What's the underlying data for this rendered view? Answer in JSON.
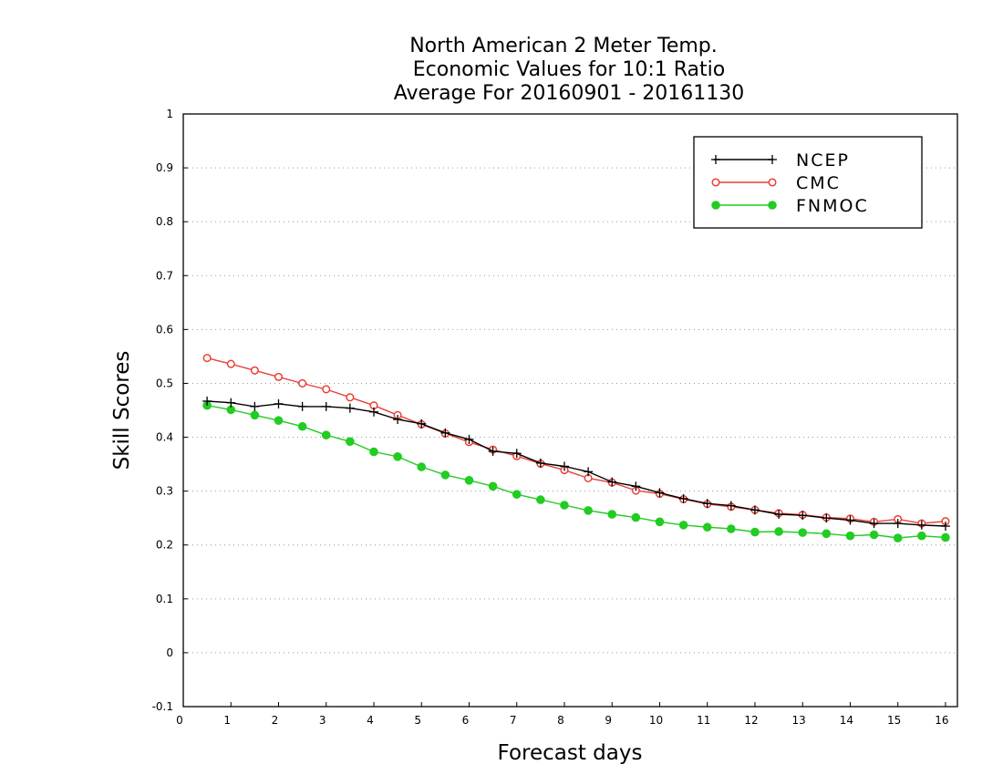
{
  "chart_data": {
    "type": "line",
    "title": [
      "North American 2 Meter Temp.",
      "Economic Values for 10:1 Ratio",
      "Average For 20160901 - 20161130"
    ],
    "xlabel": "Forecast days",
    "ylabel": "Skill Scores",
    "xlim": [
      0,
      16.25
    ],
    "ylim": [
      -0.1,
      1
    ],
    "xticks": [
      0,
      1,
      2,
      3,
      4,
      5,
      6,
      7,
      8,
      9,
      10,
      11,
      12,
      13,
      14,
      15,
      16
    ],
    "xtick_labels": [
      "0",
      "1",
      "2",
      "3",
      "4",
      "5",
      "6",
      "7",
      "8",
      "9",
      "10",
      "11",
      "12",
      "13",
      "14",
      "15",
      "16"
    ],
    "yticks": [
      -0.1,
      0,
      0.1,
      0.2,
      0.3,
      0.4,
      0.5,
      0.6,
      0.7,
      0.8,
      0.9,
      1
    ],
    "ytick_labels": [
      "-0.1",
      "0",
      "0.1",
      "0.2",
      "0.3",
      "0.4",
      "0.5",
      "0.6",
      "0.7",
      "0.8",
      "0.9",
      "1"
    ],
    "grid": true,
    "legend_position": "top-right",
    "x": [
      0.5,
      1,
      1.5,
      2,
      2.5,
      3,
      3.5,
      4,
      4.5,
      5,
      5.5,
      6,
      6.5,
      7,
      7.5,
      8,
      8.5,
      9,
      9.5,
      10,
      10.5,
      11,
      11.5,
      12,
      12.5,
      13,
      13.5,
      14,
      14.5,
      15,
      15.5,
      16
    ],
    "series": [
      {
        "name": "NCEP",
        "color": "#000000",
        "marker": "plus",
        "values": [
          0.467,
          0.464,
          0.457,
          0.462,
          0.457,
          0.457,
          0.454,
          0.447,
          0.433,
          0.425,
          0.408,
          0.396,
          0.374,
          0.37,
          0.352,
          0.346,
          0.336,
          0.317,
          0.309,
          0.297,
          0.286,
          0.277,
          0.273,
          0.265,
          0.257,
          0.255,
          0.25,
          0.246,
          0.24,
          0.24,
          0.237,
          0.235
        ]
      },
      {
        "name": "CMC",
        "color": "#e8403a",
        "marker": "open-circle",
        "values": [
          0.547,
          0.536,
          0.524,
          0.512,
          0.5,
          0.489,
          0.474,
          0.459,
          0.441,
          0.424,
          0.407,
          0.391,
          0.377,
          0.365,
          0.351,
          0.339,
          0.324,
          0.316,
          0.301,
          0.295,
          0.285,
          0.276,
          0.271,
          0.265,
          0.259,
          0.256,
          0.251,
          0.249,
          0.243,
          0.248,
          0.24,
          0.244
        ]
      },
      {
        "name": "FNMOC",
        "color": "#22cc22",
        "marker": "filled-circle",
        "values": [
          0.459,
          0.451,
          0.441,
          0.431,
          0.42,
          0.404,
          0.392,
          0.373,
          0.364,
          0.345,
          0.33,
          0.32,
          0.309,
          0.294,
          0.284,
          0.274,
          0.264,
          0.257,
          0.251,
          0.243,
          0.237,
          0.233,
          0.23,
          0.224,
          0.225,
          0.223,
          0.221,
          0.217,
          0.219,
          0.213,
          0.217,
          0.214
        ]
      }
    ]
  }
}
